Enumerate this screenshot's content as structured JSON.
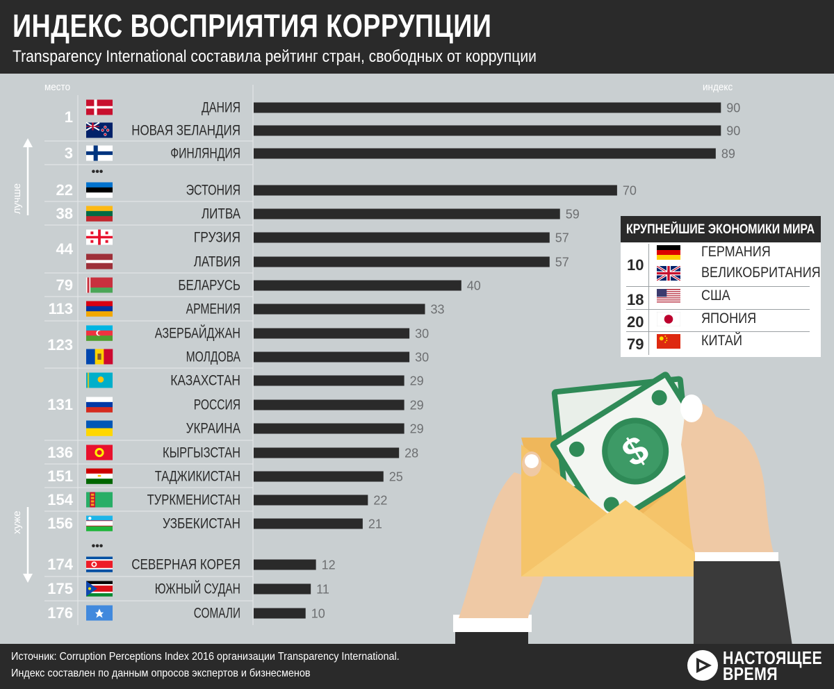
{
  "header": {
    "title": "ИНДЕКС ВОСПРИЯТИЯ КОРРУПЦИИ",
    "subtitle": "Transparency International составила рейтинг стран, свободных от коррупции"
  },
  "labels": {
    "rank_col": "место",
    "index_col": "индекс",
    "better": "лучше",
    "worse": "хуже",
    "ellipsis": "•••"
  },
  "colors": {
    "background": "#c9cfd1",
    "header": "#2a2a2a",
    "bar": "#2a2a2a",
    "value_text": "#6d6f71"
  },
  "chart_data": {
    "type": "bar",
    "orientation": "horizontal",
    "title": "ИНДЕКС ВОСПРИЯТИЯ КОРРУПЦИИ",
    "xlabel": "индекс",
    "ylabel": "место",
    "xlim": [
      0,
      100
    ],
    "grid": false,
    "rows": [
      {
        "country": "ДАНИЯ",
        "flag": "denmark-flag",
        "value": 90,
        "rank": "1"
      },
      {
        "country": "НОВАЯ ЗЕЛАНДИЯ",
        "flag": "new-zealand-flag",
        "value": 90,
        "rank": ""
      },
      {
        "country": "ФИНЛЯНДИЯ",
        "flag": "finland-flag",
        "value": 89,
        "rank": "3"
      },
      {
        "country": "ЭСТОНИЯ",
        "flag": "estonia-flag",
        "value": 70,
        "rank": "22"
      },
      {
        "country": "ЛИТВА",
        "flag": "lithuania-flag",
        "value": 59,
        "rank": "38"
      },
      {
        "country": "ГРУЗИЯ",
        "flag": "georgia-flag",
        "value": 57,
        "rank": "44"
      },
      {
        "country": "ЛАТВИЯ",
        "flag": "latvia-flag",
        "value": 57,
        "rank": ""
      },
      {
        "country": "БЕЛАРУСЬ",
        "flag": "belarus-flag",
        "value": 40,
        "rank": "79"
      },
      {
        "country": "АРМЕНИЯ",
        "flag": "armenia-flag",
        "value": 33,
        "rank": "113"
      },
      {
        "country": "АЗЕРБАЙДЖАН",
        "flag": "azerbaijan-flag",
        "value": 30,
        "rank": "123"
      },
      {
        "country": "МОЛДОВА",
        "flag": "moldova-flag",
        "value": 30,
        "rank": ""
      },
      {
        "country": "КАЗАХСТАН",
        "flag": "kazakhstan-flag",
        "value": 29,
        "rank": ""
      },
      {
        "country": "РОССИЯ",
        "flag": "russia-flag",
        "value": 29,
        "rank": "131"
      },
      {
        "country": "УКРАИНА",
        "flag": "ukraine-flag",
        "value": 29,
        "rank": ""
      },
      {
        "country": "КЫРГЫЗСТАН",
        "flag": "kyrgyzstan-flag",
        "value": 28,
        "rank": "136"
      },
      {
        "country": "ТАДЖИКИСТАН",
        "flag": "tajikistan-flag",
        "value": 25,
        "rank": "151"
      },
      {
        "country": "ТУРКМЕНИСТАН",
        "flag": "turkmenistan-flag",
        "value": 22,
        "rank": "154"
      },
      {
        "country": "УЗБЕКИСТАН",
        "flag": "uzbekistan-flag",
        "value": 21,
        "rank": "156"
      },
      {
        "country": "СЕВЕРНАЯ КОРЕЯ",
        "flag": "north-korea-flag",
        "value": 12,
        "rank": "174"
      },
      {
        "country": "ЮЖНЫЙ СУДАН",
        "flag": "south-sudan-flag",
        "value": 11,
        "rank": "175"
      },
      {
        "country": "СОМАЛИ",
        "flag": "somalia-flag",
        "value": 10,
        "rank": "176"
      }
    ]
  },
  "economies": {
    "title": "КРУПНЕЙШИЕ ЭКОНОМИКИ МИРА",
    "rows": [
      {
        "rank": "10",
        "name": "ГЕРМАНИЯ",
        "flag": "germany-flag"
      },
      {
        "rank": "",
        "name": "ВЕЛИКОБРИТАНИЯ",
        "flag": "uk-flag"
      },
      {
        "rank": "18",
        "name": "США",
        "flag": "usa-flag"
      },
      {
        "rank": "20",
        "name": "ЯПОНИЯ",
        "flag": "japan-flag"
      },
      {
        "rank": "79",
        "name": "КИТАЙ",
        "flag": "china-flag"
      }
    ]
  },
  "illustration": {
    "dollar_sign": "$"
  },
  "footer": {
    "source_line1": "Источник: Corruption Perceptions Index 2016 организации Transparency International.",
    "source_line2": "Индекс составлен по данным опросов экспертов и бизнесменов",
    "logo_line1": "НАСТОЯЩЕЕ",
    "logo_line2": "ВРЕМЯ"
  }
}
